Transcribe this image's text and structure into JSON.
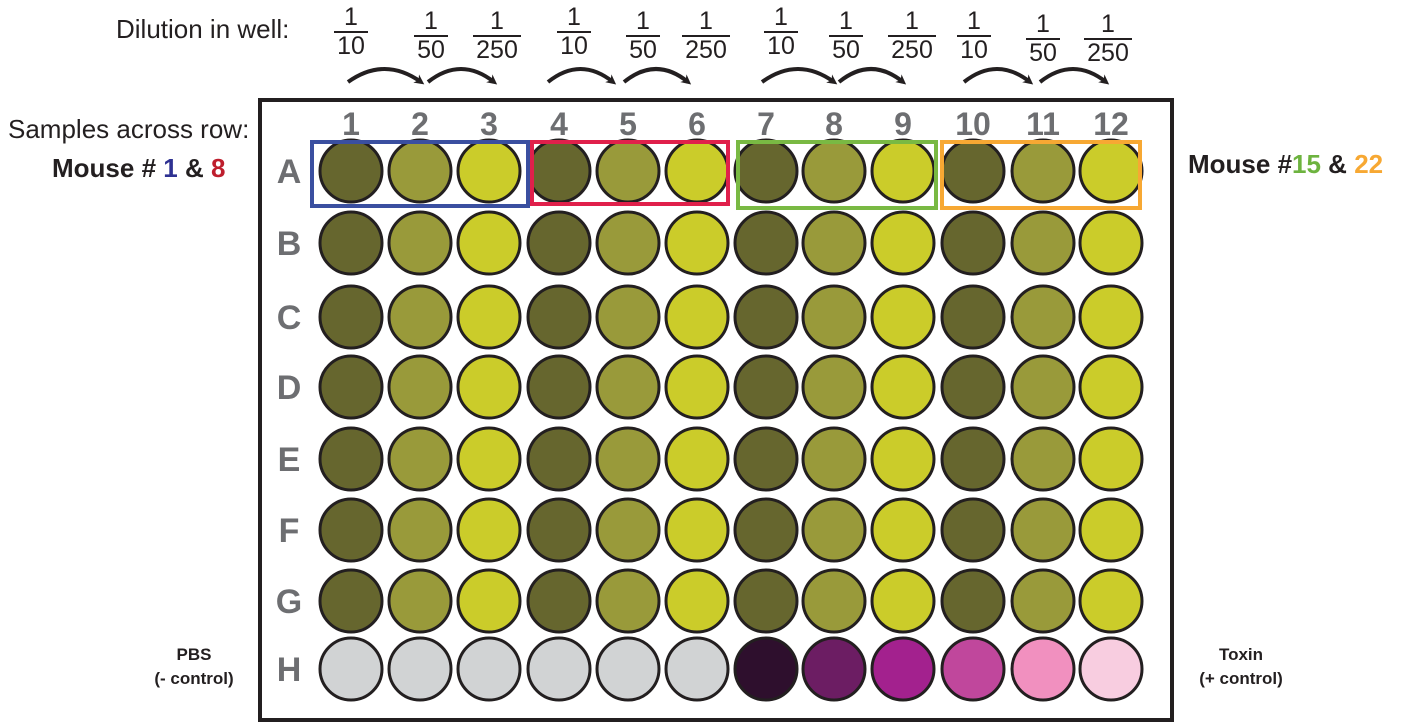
{
  "labels": {
    "dilution": "Dilution in well:",
    "samples": "Samples across row:"
  },
  "dilutions": [
    {
      "num": "1",
      "den": "10"
    },
    {
      "num": "1",
      "den": "50"
    },
    {
      "num": "1",
      "den": "250"
    },
    {
      "num": "1",
      "den": "10"
    },
    {
      "num": "1",
      "den": "50"
    },
    {
      "num": "1",
      "den": "250"
    },
    {
      "num": "1",
      "den": "10"
    },
    {
      "num": "1",
      "den": "50"
    },
    {
      "num": "1",
      "den": "250"
    },
    {
      "num": "1",
      "den": "10"
    },
    {
      "num": "1",
      "den": "50"
    },
    {
      "num": "1",
      "den": "250"
    }
  ],
  "columns": [
    "1",
    "2",
    "3",
    "4",
    "5",
    "6",
    "7",
    "8",
    "9",
    "10",
    "11",
    "12"
  ],
  "rows": [
    "A",
    "B",
    "C",
    "D",
    "E",
    "F",
    "G",
    "H"
  ],
  "mouse_left": {
    "prefix": "Mouse # ",
    "first": "1",
    "joiner": " & ",
    "second": "8",
    "first_color": "#2e3192",
    "second_color": "#be1e2d"
  },
  "mouse_right": {
    "prefix": "Mouse #",
    "first": "15",
    "joiner": " & ",
    "second": "22",
    "first_color": "#6db33f",
    "second_color": "#f7a833"
  },
  "controls": {
    "negative": {
      "name": "PBS",
      "desc": "(- control)"
    },
    "positive": {
      "name": "Toxin",
      "desc": "(+ control)"
    }
  },
  "group_box_colors": [
    "#3a4fa0",
    "#e0204b",
    "#79b943",
    "#f7a833"
  ],
  "well_colors": {
    "sample_gradient": [
      "#66662e",
      "#999a3a",
      "#cbcc2a"
    ],
    "negative_control": "#d1d3d4",
    "positive_control": [
      "#2e0f2d",
      "#6c1d63",
      "#a3218e",
      "#c0479c",
      "#f190bf",
      "#f8cde0"
    ]
  },
  "plate_colors": {
    "border": "#231f20",
    "row_col_label": "#6d6e71"
  }
}
